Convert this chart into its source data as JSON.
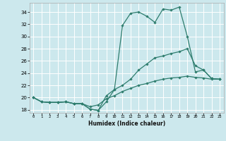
{
  "title": "",
  "xlabel": "Humidex (Indice chaleur)",
  "bg_color": "#cce8ed",
  "line_color": "#2e7d6e",
  "grid_color": "#ffffff",
  "xlim": [
    -0.5,
    23.5
  ],
  "ylim": [
    17.5,
    35.5
  ],
  "xticks": [
    0,
    1,
    2,
    3,
    4,
    5,
    6,
    7,
    8,
    9,
    10,
    11,
    12,
    13,
    14,
    15,
    16,
    17,
    18,
    19,
    20,
    21,
    22,
    23
  ],
  "yticks": [
    18,
    20,
    22,
    24,
    26,
    28,
    30,
    32,
    34
  ],
  "line1_x": [
    0,
    1,
    2,
    3,
    4,
    5,
    6,
    7,
    8,
    9,
    10,
    11,
    12,
    13,
    14,
    15,
    16,
    17,
    18,
    19,
    20,
    21,
    22,
    23
  ],
  "line1_y": [
    20.0,
    19.3,
    19.2,
    19.2,
    19.3,
    19.0,
    19.0,
    18.1,
    17.9,
    19.3,
    21.3,
    31.8,
    33.8,
    34.0,
    33.3,
    32.3,
    34.5,
    34.3,
    34.8,
    30.0,
    24.2,
    24.5,
    23.1,
    23.0
  ],
  "line2_x": [
    0,
    1,
    2,
    3,
    4,
    5,
    6,
    7,
    8,
    9,
    10,
    11,
    12,
    13,
    14,
    15,
    16,
    17,
    18,
    19,
    20,
    21,
    22,
    23
  ],
  "line2_y": [
    20.0,
    19.3,
    19.2,
    19.2,
    19.3,
    19.0,
    19.0,
    18.1,
    17.9,
    20.3,
    21.3,
    22.0,
    23.0,
    24.5,
    25.5,
    26.5,
    26.8,
    27.2,
    27.5,
    28.0,
    25.2,
    24.5,
    23.1,
    23.0
  ],
  "line3_x": [
    0,
    1,
    2,
    3,
    4,
    5,
    6,
    7,
    8,
    9,
    10,
    11,
    12,
    13,
    14,
    15,
    16,
    17,
    18,
    19,
    20,
    21,
    22,
    23
  ],
  "line3_y": [
    20.0,
    19.3,
    19.2,
    19.2,
    19.3,
    19.0,
    19.0,
    18.5,
    18.8,
    19.8,
    20.3,
    21.0,
    21.5,
    22.0,
    22.3,
    22.7,
    23.0,
    23.2,
    23.3,
    23.5,
    23.3,
    23.2,
    23.0,
    23.0
  ]
}
